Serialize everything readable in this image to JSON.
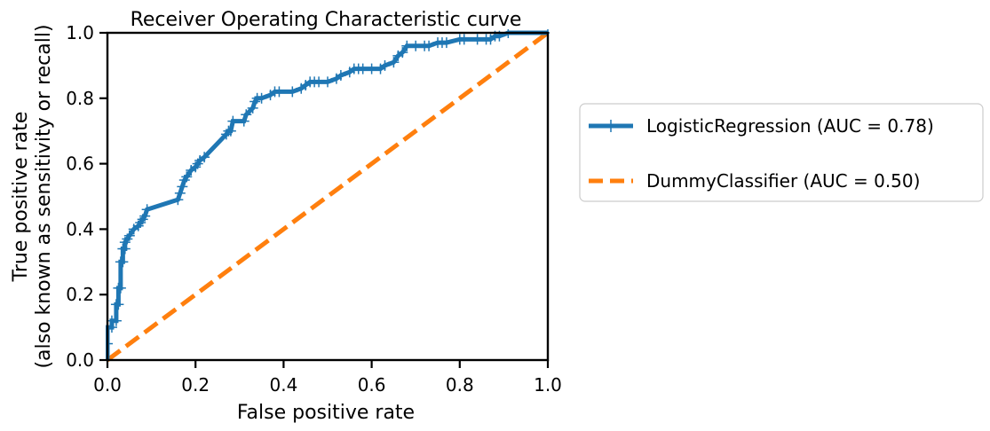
{
  "chart_data": {
    "type": "line",
    "title": "Receiver Operating Characteristic curve",
    "xlabel": "False positive rate",
    "ylabel_lines": [
      "True positive rate",
      "(also known as sensitivity or recall)"
    ],
    "xlim": [
      0.0,
      1.0
    ],
    "ylim": [
      0.0,
      1.0
    ],
    "xticks": [
      0.0,
      0.2,
      0.4,
      0.6,
      0.8,
      1.0
    ],
    "yticks": [
      0.0,
      0.2,
      0.4,
      0.6,
      0.8,
      1.0
    ],
    "xtick_labels": [
      "0.0",
      "0.2",
      "0.4",
      "0.6",
      "0.8",
      "1.0"
    ],
    "ytick_labels": [
      "0.0",
      "0.2",
      "0.4",
      "0.6",
      "0.8",
      "1.0"
    ],
    "grid": false,
    "legend_position": "outside-right",
    "series": [
      {
        "name": "LogisticRegression (AUC = 0.78)",
        "color": "#1f77b4",
        "style": "solid",
        "marker": "plus",
        "x": [
          0.0,
          0.0,
          0.0,
          0.01,
          0.01,
          0.02,
          0.02,
          0.025,
          0.025,
          0.03,
          0.03,
          0.035,
          0.035,
          0.04,
          0.04,
          0.045,
          0.05,
          0.06,
          0.07,
          0.075,
          0.08,
          0.085,
          0.09,
          0.16,
          0.165,
          0.17,
          0.175,
          0.18,
          0.19,
          0.2,
          0.205,
          0.21,
          0.22,
          0.27,
          0.275,
          0.28,
          0.285,
          0.31,
          0.315,
          0.33,
          0.335,
          0.34,
          0.35,
          0.37,
          0.38,
          0.39,
          0.42,
          0.44,
          0.45,
          0.46,
          0.47,
          0.48,
          0.5,
          0.52,
          0.53,
          0.55,
          0.56,
          0.57,
          0.58,
          0.6,
          0.62,
          0.63,
          0.65,
          0.66,
          0.67,
          0.68,
          0.7,
          0.72,
          0.73,
          0.75,
          0.76,
          0.77,
          0.8,
          0.81,
          0.84,
          0.86,
          0.87,
          0.88,
          0.89,
          0.91,
          1.0
        ],
        "y": [
          0.0,
          0.05,
          0.1,
          0.1,
          0.12,
          0.12,
          0.17,
          0.17,
          0.22,
          0.22,
          0.3,
          0.3,
          0.34,
          0.34,
          0.36,
          0.37,
          0.38,
          0.4,
          0.41,
          0.42,
          0.43,
          0.44,
          0.46,
          0.49,
          0.51,
          0.53,
          0.55,
          0.56,
          0.58,
          0.59,
          0.6,
          0.61,
          0.62,
          0.69,
          0.7,
          0.7,
          0.73,
          0.73,
          0.75,
          0.77,
          0.79,
          0.8,
          0.8,
          0.81,
          0.82,
          0.82,
          0.82,
          0.83,
          0.84,
          0.85,
          0.85,
          0.85,
          0.85,
          0.86,
          0.87,
          0.88,
          0.89,
          0.89,
          0.89,
          0.89,
          0.89,
          0.9,
          0.91,
          0.93,
          0.94,
          0.96,
          0.96,
          0.96,
          0.96,
          0.97,
          0.97,
          0.97,
          0.98,
          0.98,
          0.98,
          0.98,
          0.98,
          0.99,
          0.99,
          1.0,
          1.0
        ]
      },
      {
        "name": "DummyClassifier (AUC = 0.50)",
        "color": "#ff7f0e",
        "style": "dashed",
        "marker": "none",
        "x": [
          0.0,
          1.0
        ],
        "y": [
          0.0,
          1.0
        ]
      }
    ]
  }
}
